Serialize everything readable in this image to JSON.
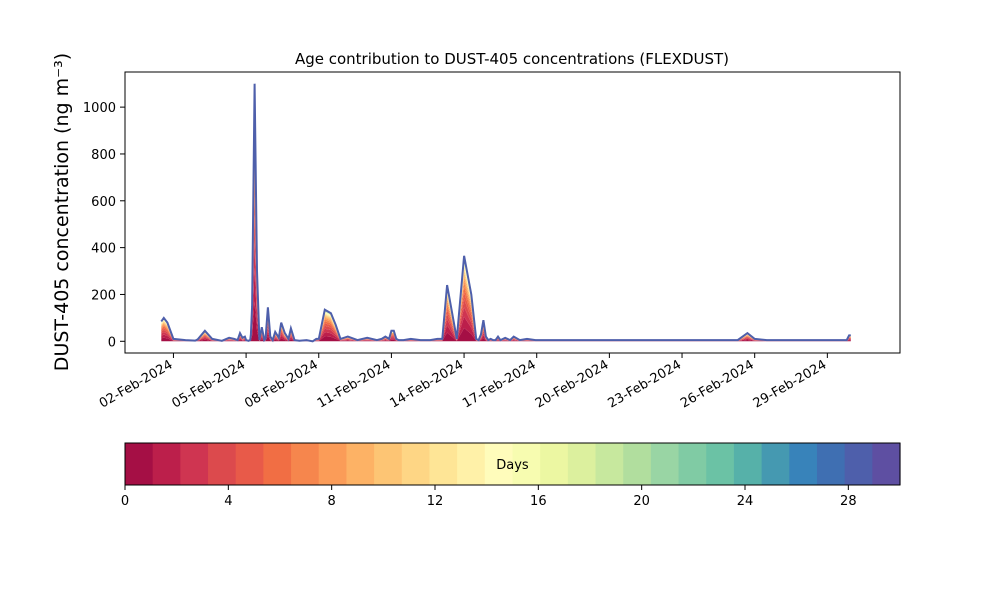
{
  "chart_data": {
    "type": "area",
    "title": "Age contribution to DUST-405 concentrations (FLEXDUST)",
    "ylabel": "DUST-405 concentration (ng m⁻³)",
    "xlabel": "",
    "x_range": [
      "2024-01-31",
      "2024-03-03"
    ],
    "ylim": [
      -50,
      1150
    ],
    "y_ticks": [
      0,
      200,
      400,
      600,
      800,
      1000
    ],
    "x_ticks": [
      {
        "date": "2024-02-02",
        "label": "02-Feb-2024"
      },
      {
        "date": "2024-02-05",
        "label": "05-Feb-2024"
      },
      {
        "date": "2024-02-08",
        "label": "08-Feb-2024"
      },
      {
        "date": "2024-02-11",
        "label": "11-Feb-2024"
      },
      {
        "date": "2024-02-14",
        "label": "14-Feb-2024"
      },
      {
        "date": "2024-02-17",
        "label": "17-Feb-2024"
      },
      {
        "date": "2024-02-20",
        "label": "20-Feb-2024"
      },
      {
        "date": "2024-02-23",
        "label": "23-Feb-2024"
      },
      {
        "date": "2024-02-26",
        "label": "26-Feb-2024"
      },
      {
        "date": "2024-02-29",
        "label": "29-Feb-2024"
      }
    ],
    "grid": false,
    "legend": "colorbar below plot",
    "total_series": {
      "description_days": [
        1.5,
        1.6,
        1.75,
        2.0,
        2.5,
        2.9,
        3.0,
        3.3,
        3.6,
        4.0,
        4.3,
        4.5,
        4.65,
        4.75,
        4.85,
        4.95,
        5.0,
        5.1,
        5.17,
        5.2,
        5.25,
        5.35,
        5.45,
        5.55,
        5.65,
        5.75,
        5.8,
        5.9,
        6.0,
        6.1,
        6.2,
        6.35,
        6.45,
        6.6,
        6.75,
        6.85,
        7.0,
        7.2,
        7.5,
        7.75,
        7.9,
        8.0,
        8.1,
        8.25,
        8.5,
        8.7,
        8.9,
        9.2,
        9.6,
        10.0,
        10.4,
        10.6,
        10.75,
        10.9,
        11.0,
        11.1,
        11.2,
        11.3,
        11.5,
        11.8,
        12.2,
        12.6,
        12.9,
        13.1,
        13.3,
        13.7,
        14.0,
        14.3,
        14.5,
        14.6,
        14.7,
        14.8,
        14.9,
        15.0,
        15.1,
        15.2,
        15.3,
        15.4,
        15.5,
        15.7,
        15.9,
        16.05,
        16.3,
        16.6,
        16.95,
        17.2,
        17.5,
        18.0,
        18.6,
        19.0,
        19.5,
        20.2,
        21.0,
        22.0,
        23.0,
        24.0,
        24.5,
        25.0,
        25.3,
        25.7,
        26.0,
        26.5,
        27.0,
        28.0,
        29.0,
        29.8,
        29.9,
        29.97
      ],
      "values": [
        85,
        100,
        80,
        10,
        5,
        3,
        8,
        45,
        10,
        2,
        15,
        10,
        5,
        35,
        15,
        20,
        5,
        2,
        5,
        30,
        150,
        1100,
        300,
        5,
        60,
        5,
        10,
        145,
        20,
        5,
        40,
        15,
        80,
        35,
        10,
        55,
        5,
        2,
        5,
        0,
        10,
        10,
        60,
        135,
        120,
        70,
        10,
        20,
        5,
        15,
        5,
        10,
        20,
        10,
        45,
        45,
        10,
        5,
        5,
        10,
        5,
        5,
        10,
        10,
        240,
        10,
        365,
        200,
        10,
        5,
        30,
        90,
        20,
        5,
        10,
        5,
        5,
        20,
        5,
        15,
        5,
        20,
        5,
        10,
        5,
        5,
        5,
        5,
        5,
        5,
        5,
        5,
        5,
        5,
        5,
        5,
        5,
        5,
        5,
        35,
        10,
        5,
        5,
        5,
        5,
        5,
        25,
        25
      ]
    },
    "age_bands_days": [
      0,
      30
    ],
    "colorbar": {
      "label": "Days",
      "range": [
        0,
        30
      ],
      "ticks": [
        0,
        4,
        8,
        12,
        16,
        20,
        24,
        28
      ],
      "colors": [
        "#a50f45",
        "#bc1f4b",
        "#cf3551",
        "#dc4a4d",
        "#e85a49",
        "#f16e44",
        "#f6864d",
        "#fb9c58",
        "#fdb265",
        "#fdc574",
        "#fed685",
        "#fee596",
        "#fff1a8",
        "#fffcbb",
        "#f7fcb0",
        "#ecf7a2",
        "#dcf09e",
        "#c7e89e",
        "#b1de9e",
        "#99d5a4",
        "#80cba4",
        "#6bc2a5",
        "#56b1a9",
        "#4599b1",
        "#3883ba",
        "#3f6fb2",
        "#4e5fab",
        "#5e4fa2"
      ]
    }
  }
}
